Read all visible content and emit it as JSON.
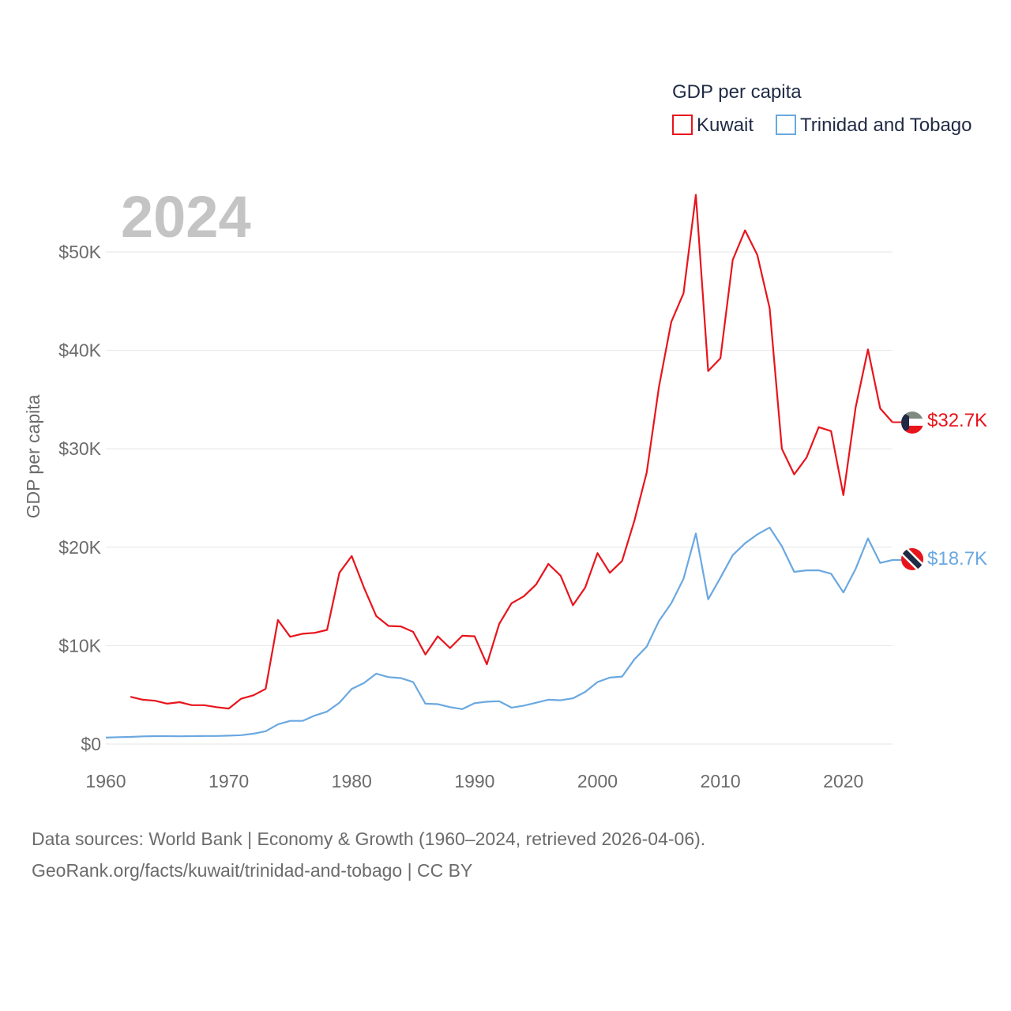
{
  "chart_data": {
    "type": "line",
    "year_label": "2024",
    "legend_title": "GDP per capita",
    "ylabel": "GDP per capita",
    "xlim": [
      1960,
      2024
    ],
    "ylim": [
      0,
      55000
    ],
    "x_ticks": [
      1960,
      1970,
      1980,
      1990,
      2000,
      2010,
      2020
    ],
    "x_tick_labels": [
      "1960",
      "1970",
      "1980",
      "1990",
      "2000",
      "2010",
      "2020"
    ],
    "y_ticks": [
      0,
      10000,
      20000,
      30000,
      40000,
      50000
    ],
    "y_tick_labels": [
      "$0",
      "$10K",
      "$20K",
      "$30K",
      "$40K",
      "$50K"
    ],
    "series": [
      {
        "name": "Kuwait",
        "color": "#e8141c",
        "end_label": "$32.7K",
        "x": [
          1962,
          1963,
          1964,
          1965,
          1966,
          1967,
          1968,
          1969,
          1970,
          1971,
          1972,
          1973,
          1974,
          1975,
          1976,
          1977,
          1978,
          1979,
          1980,
          1981,
          1982,
          1983,
          1984,
          1985,
          1986,
          1987,
          1988,
          1989,
          1990,
          1991,
          1992,
          1993,
          1994,
          1995,
          1996,
          1997,
          1998,
          1999,
          2000,
          2001,
          2002,
          2003,
          2004,
          2005,
          2006,
          2007,
          2008,
          2009,
          2010,
          2011,
          2012,
          2013,
          2014,
          2015,
          2016,
          2017,
          2018,
          2019,
          2020,
          2021,
          2022,
          2023,
          2024
        ],
        "values": [
          4800,
          4500,
          4400,
          4100,
          4250,
          3950,
          3950,
          3750,
          3600,
          4600,
          4950,
          5600,
          12600,
          10900,
          11200,
          11300,
          11600,
          17400,
          19100,
          15900,
          13000,
          12000,
          11950,
          11400,
          9100,
          10950,
          9750,
          11000,
          10950,
          8100,
          12200,
          14300,
          15000,
          16200,
          18300,
          17100,
          14100,
          15900,
          19400,
          17400,
          18600,
          22700,
          27600,
          36300,
          42900,
          45800,
          55800,
          37900,
          39200,
          49200,
          52200,
          49700,
          44300,
          30000,
          27400,
          29100,
          32200,
          31800,
          25300,
          34200,
          40100,
          34100,
          32700
        ]
      },
      {
        "name": "Trinidad and Tobago",
        "color": "#6aa8e0",
        "end_label": "$18.7K",
        "x": [
          1960,
          1961,
          1962,
          1963,
          1964,
          1965,
          1966,
          1967,
          1968,
          1969,
          1970,
          1971,
          1972,
          1973,
          1974,
          1975,
          1976,
          1977,
          1978,
          1979,
          1980,
          1981,
          1982,
          1983,
          1984,
          1985,
          1986,
          1987,
          1988,
          1989,
          1990,
          1991,
          1992,
          1993,
          1994,
          1995,
          1996,
          1997,
          1998,
          1999,
          2000,
          2001,
          2002,
          2003,
          2004,
          2005,
          2006,
          2007,
          2008,
          2009,
          2010,
          2011,
          2012,
          2013,
          2014,
          2015,
          2016,
          2017,
          2018,
          2019,
          2020,
          2021,
          2022,
          2023,
          2024
        ],
        "values": [
          650,
          700,
          720,
          780,
          800,
          800,
          790,
          800,
          820,
          820,
          850,
          900,
          1050,
          1300,
          2000,
          2350,
          2350,
          2900,
          3300,
          4200,
          5600,
          6200,
          7150,
          6800,
          6700,
          6300,
          4100,
          4050,
          3750,
          3550,
          4150,
          4300,
          4350,
          3700,
          3900,
          4200,
          4500,
          4450,
          4650,
          5300,
          6300,
          6750,
          6850,
          8600,
          9900,
          12500,
          14300,
          16800,
          21400,
          14700,
          16900,
          19200,
          20400,
          21300,
          22000,
          20100,
          17500,
          17650,
          17650,
          17300,
          15400,
          17800,
          20900,
          18400,
          18700
        ]
      }
    ]
  },
  "footer": {
    "line1": "Data sources: World Bank | Economy & Growth (1960–2024, retrieved 2026-04-06).",
    "line2": "GeoRank.org/facts/kuwait/trinidad-and-tobago | CC BY"
  },
  "colors": {
    "kuwait_flag": [
      "#007a3d",
      "#ffffff",
      "#ce1126",
      "#000000"
    ],
    "tt_flag": [
      "#ce1126",
      "#ffffff",
      "#000000"
    ]
  }
}
